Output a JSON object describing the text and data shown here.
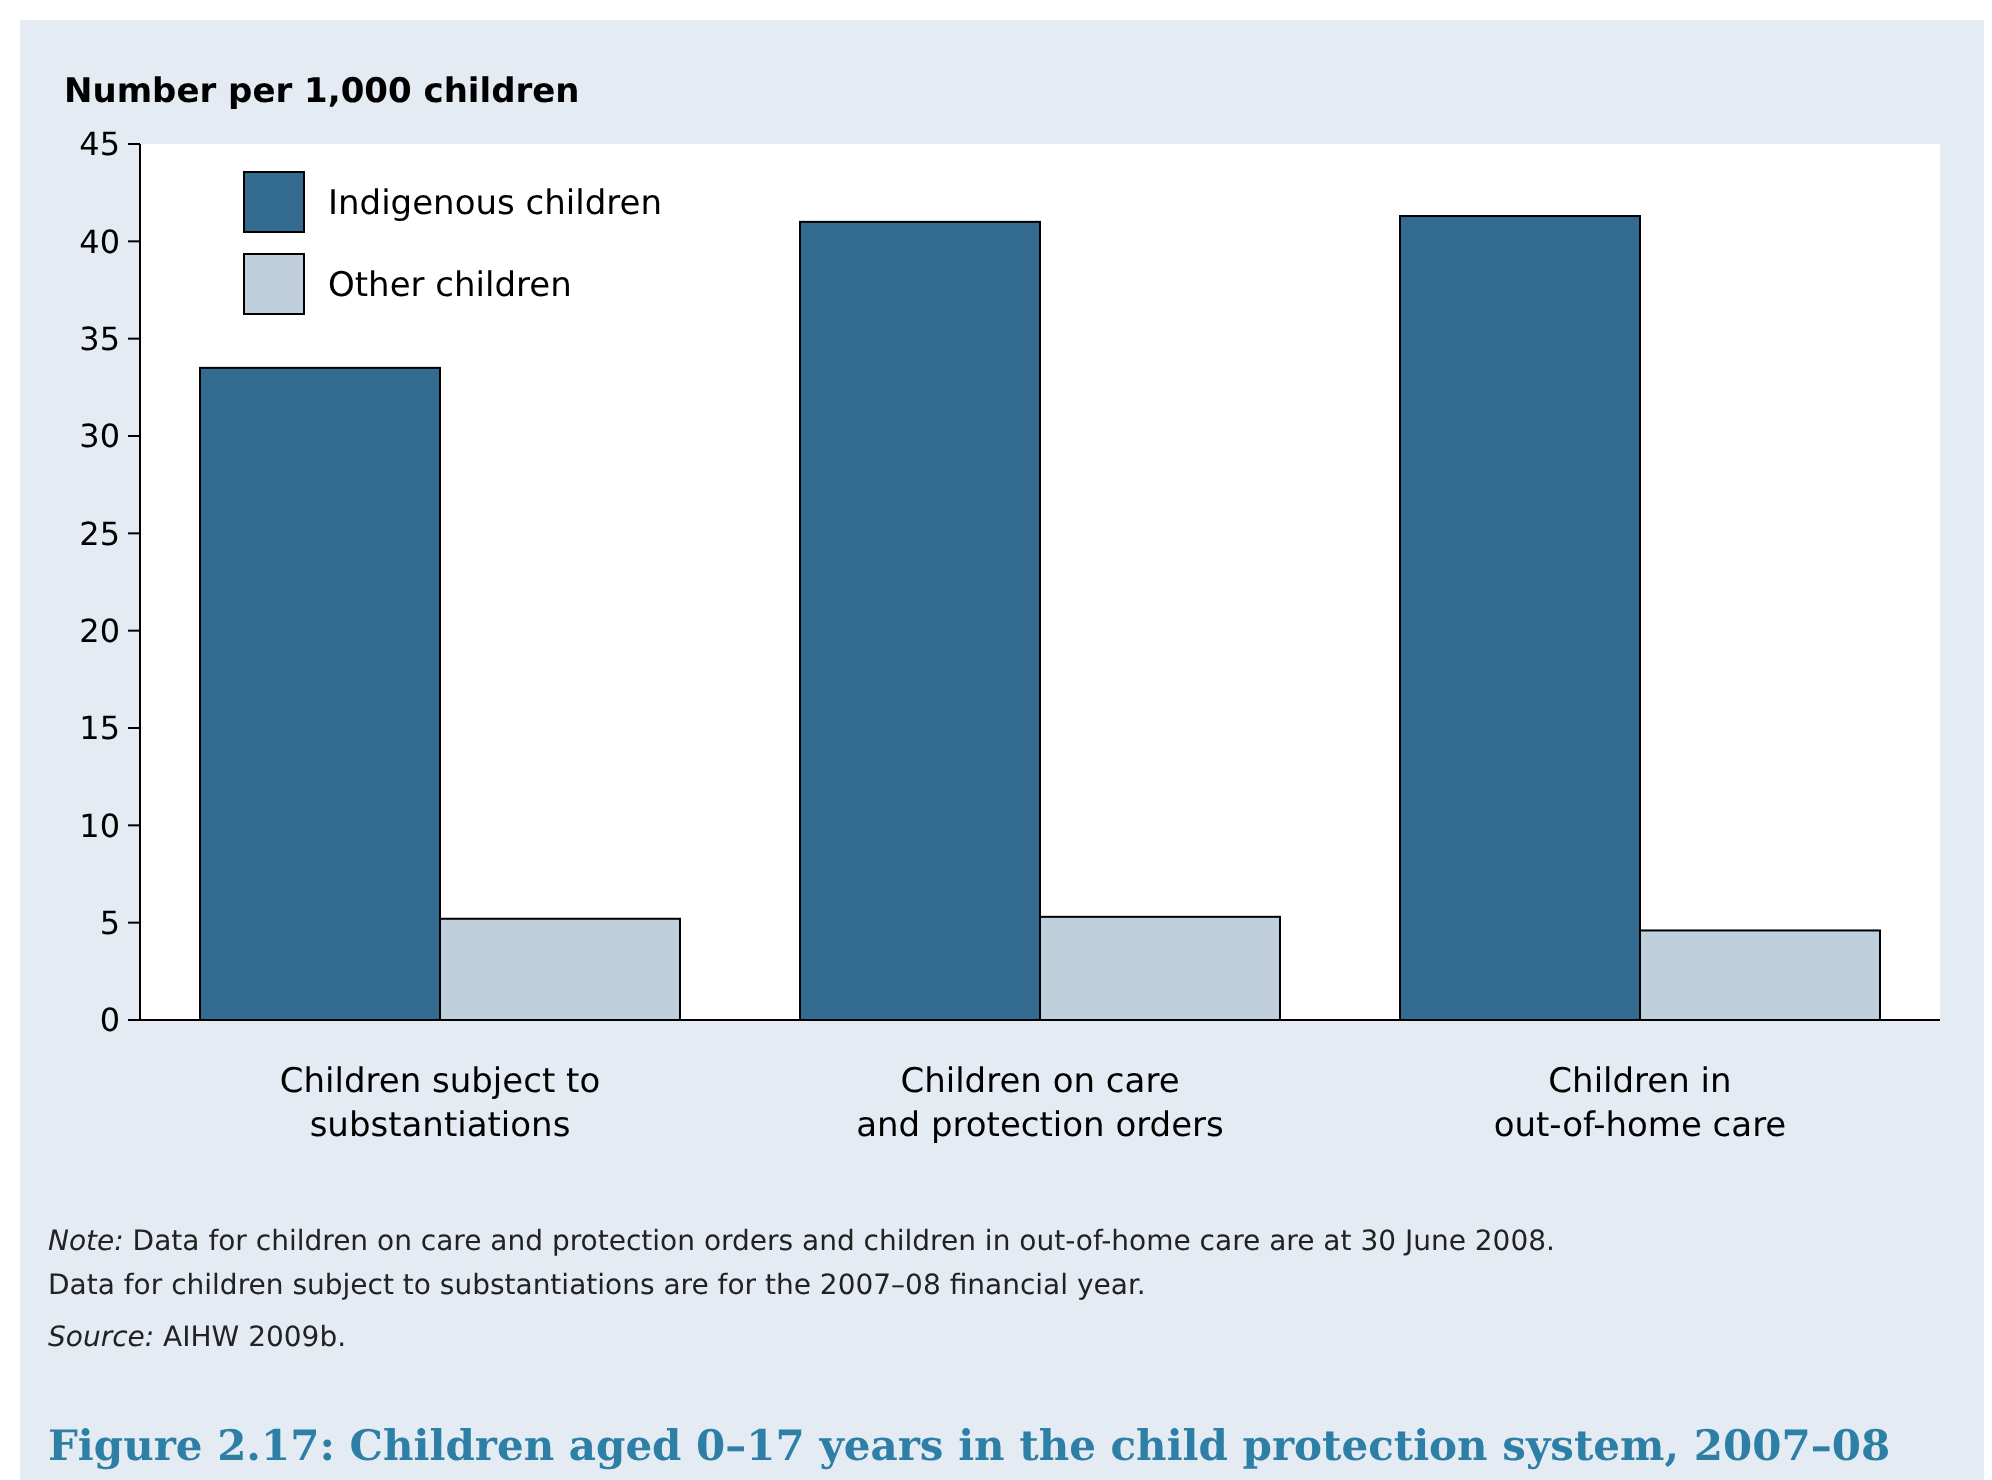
{
  "chart_data": {
    "type": "bar",
    "title": "Figure 2.17: Children aged 0–17 years in the child protection system, 2007–08",
    "ylabel": "Number per 1,000 children",
    "categories": [
      "Children subject to\nsubstantiations",
      "Children on care\nand protection orders",
      "Children in\nout-of-home care"
    ],
    "series": [
      {
        "name": "Indigenous children",
        "color": "#336b91",
        "values": [
          33.5,
          41.0,
          41.3
        ]
      },
      {
        "name": "Other children",
        "color": "#bfd0dc",
        "values": [
          5.2,
          5.3,
          4.6
        ]
      }
    ],
    "ylim": [
      0,
      45
    ],
    "yticks": [
      0,
      5,
      10,
      15,
      20,
      25,
      30,
      35,
      40,
      45
    ],
    "grid": false,
    "legend": "top left",
    "annotations": [
      "Note: Data for children on care and protection orders and children in out-of-home care are at 30 June 2008. Data for children subject to substantiations are for the 2007–08 financial year.",
      "Source: AIHW 2009b."
    ]
  }
}
